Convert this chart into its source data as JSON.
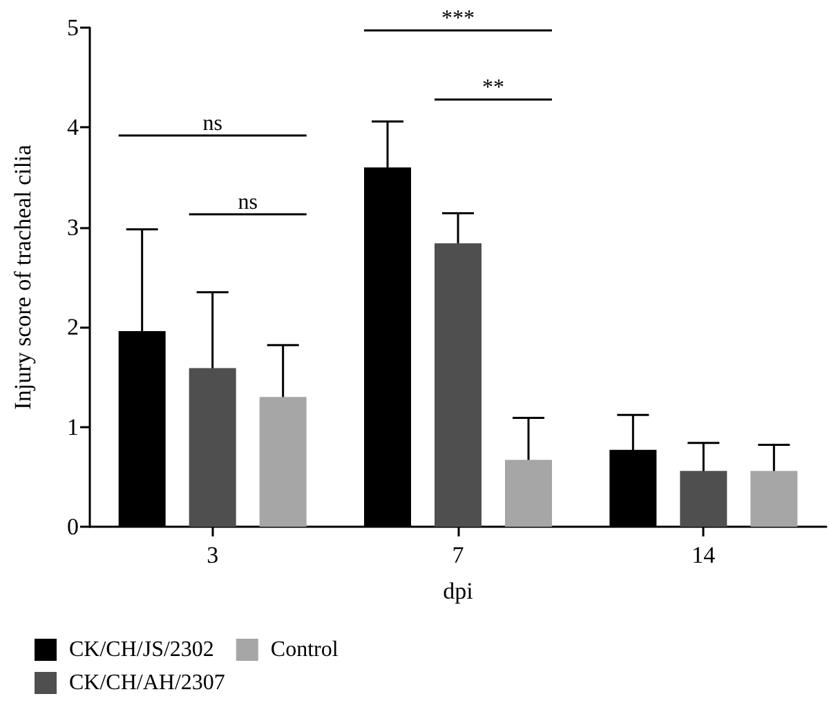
{
  "chart_data": {
    "type": "bar",
    "xlabel": "dpi",
    "ylabel": "Injury score of tracheal cilia",
    "categories": [
      "3",
      "7",
      "14"
    ],
    "series": [
      {
        "name": "CK/CH/JS/2302",
        "color": "#000000",
        "values": [
          1.96,
          3.6,
          0.77
        ],
        "errors": [
          1.02,
          0.46,
          0.35
        ]
      },
      {
        "name": "CK/CH/AH/2307",
        "color": "#4f4f4f",
        "values": [
          1.59,
          2.84,
          0.56
        ],
        "errors": [
          0.76,
          0.3,
          0.28
        ]
      },
      {
        "name": "Control",
        "color": "#a6a6a6",
        "values": [
          1.3,
          0.67,
          0.56
        ],
        "errors": [
          0.52,
          0.42,
          0.26
        ]
      }
    ],
    "ylim": [
      0,
      5
    ],
    "yticks": [
      0,
      1,
      2,
      3,
      4,
      5
    ],
    "grid": false,
    "legend": "bottom left",
    "annotations": [
      "ns",
      "ns",
      "***",
      "**"
    ]
  }
}
